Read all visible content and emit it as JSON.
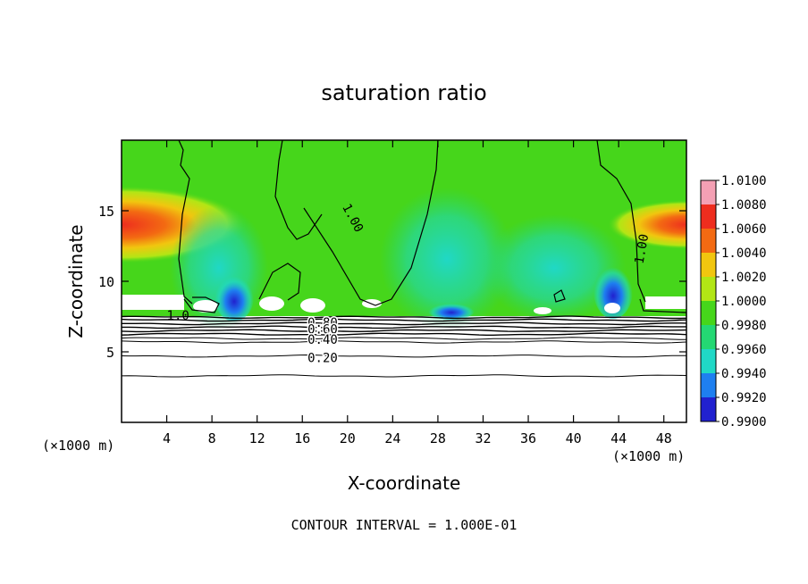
{
  "chart_data": {
    "type": "heatmap",
    "title": "saturation ratio",
    "xlabel": "X-coordinate",
    "ylabel": "Z-coordinate",
    "x_units_left": "(×1000 m)",
    "x_units_right": "(×1000 m)",
    "xlim": [
      0,
      50
    ],
    "ylim": [
      0,
      20
    ],
    "x_ticks": [
      "4",
      "8",
      "12",
      "16",
      "20",
      "24",
      "28",
      "32",
      "36",
      "40",
      "44",
      "48"
    ],
    "x_tick_values": [
      4,
      8,
      12,
      16,
      20,
      24,
      28,
      32,
      36,
      40,
      44,
      48
    ],
    "y_ticks": [
      "5",
      "10",
      "15"
    ],
    "y_tick_values": [
      5,
      10,
      15
    ],
    "footer": "CONTOUR INTERVAL = 1.000E-01",
    "colorbar": {
      "labels": [
        "1.0100",
        "1.0080",
        "1.0060",
        "1.0040",
        "1.0020",
        "1.0000",
        "0.9980",
        "0.9960",
        "0.9940",
        "0.9920",
        "0.9900"
      ],
      "colors": [
        "#f4a0b4",
        "#ee2d1e",
        "#f36a12",
        "#f1c60f",
        "#b2e615",
        "#46d61b",
        "#24d873",
        "#20d8c6",
        "#1e7ff0",
        "#2121cf",
        "#5a1bb1"
      ]
    },
    "contour_labels": [
      {
        "text": "1.00",
        "x": 20.5,
        "z": 14.5
      },
      {
        "text": "1.00",
        "x": 46.0,
        "z": 12.3
      },
      {
        "text": "1.0",
        "x": 5.0,
        "z": 7.6
      },
      {
        "text": "0.80",
        "x": 17.8,
        "z": 7.1
      },
      {
        "text": "0.60",
        "x": 17.8,
        "z": 6.6
      },
      {
        "text": "0.40",
        "x": 17.8,
        "z": 5.9
      },
      {
        "text": "0.20",
        "x": 17.8,
        "z": 4.6
      }
    ],
    "contours_below_cloud": [
      7.45,
      7.25,
      7.0,
      6.75,
      6.5,
      6.25,
      5.95,
      5.7,
      4.7,
      3.3
    ],
    "grid": false,
    "legend": "right"
  }
}
